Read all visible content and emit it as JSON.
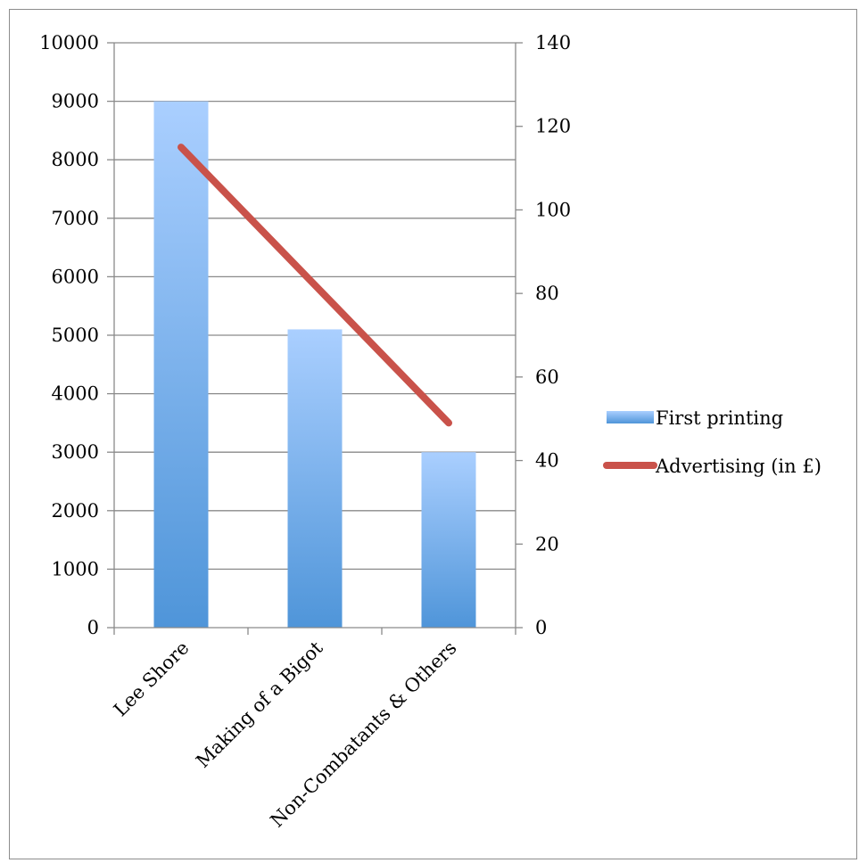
{
  "chart_data": {
    "type": "bar",
    "categories": [
      "Lee Shore",
      "Making of a Bigot",
      "Non-Combatants & Others"
    ],
    "series": [
      {
        "name": "First printing",
        "type": "bar",
        "axis": "left",
        "values": [
          9000,
          5100,
          3000
        ],
        "color_top": "#aacfff",
        "color_bottom": "#4f95d9"
      },
      {
        "name": "Advertising (in £)",
        "type": "line",
        "axis": "right",
        "values": [
          115,
          82,
          49
        ],
        "color": "#c9524a"
      }
    ],
    "y_left": {
      "ylim": [
        0,
        10000
      ],
      "ticks": [
        0,
        1000,
        2000,
        3000,
        4000,
        5000,
        6000,
        7000,
        8000,
        9000,
        10000
      ],
      "tick_labels": [
        "0",
        "1000",
        "2000",
        "3000",
        "4000",
        "5000",
        "6000",
        "7000",
        "8000",
        "9000",
        "10000"
      ]
    },
    "y_right": {
      "ylim": [
        0,
        140
      ],
      "ticks": [
        0,
        20,
        40,
        60,
        80,
        100,
        120,
        140
      ],
      "tick_labels": [
        "0",
        "20",
        "40",
        "60",
        "80",
        "100",
        "120",
        "140"
      ]
    },
    "title": "",
    "xlabel": "",
    "ylabel": "",
    "grid": true,
    "legend_position": "right"
  }
}
